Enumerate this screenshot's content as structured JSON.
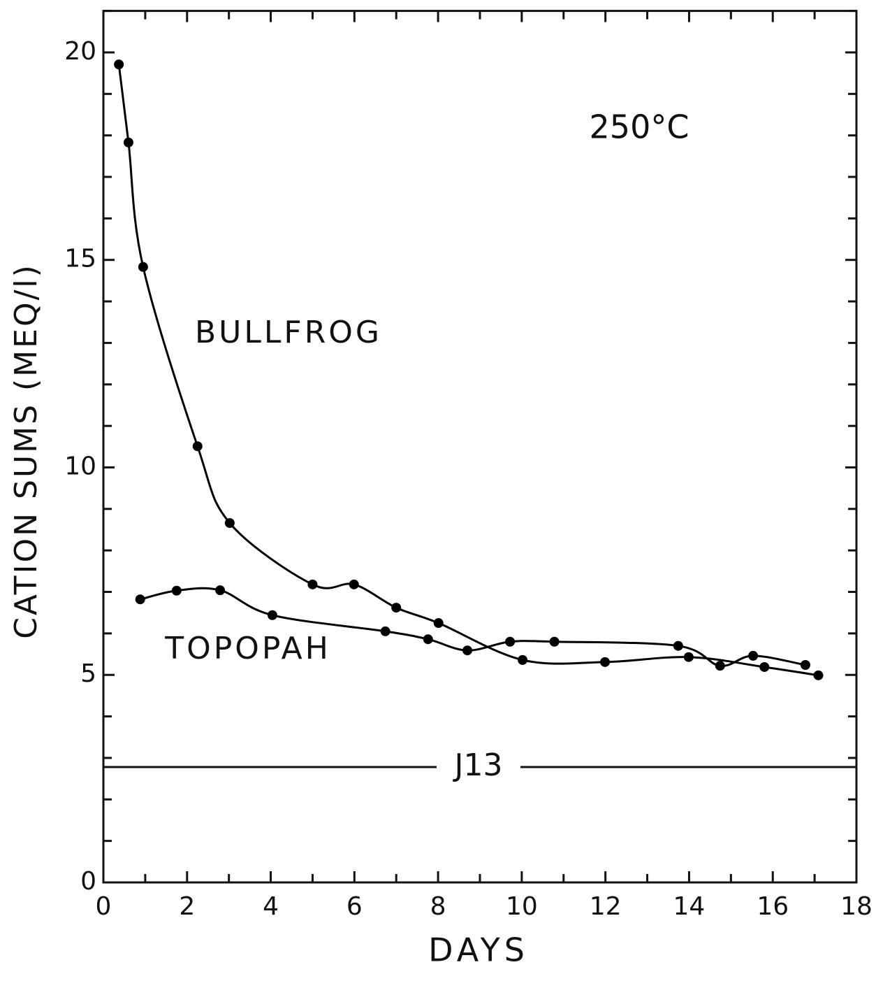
{
  "chart_data": {
    "type": "line",
    "xlabel": "DAYS",
    "ylabel": "CATION SUMS (MEQ/l)",
    "annotations": [
      "250°C",
      "BULLFROG",
      "TOPOPAH"
    ],
    "reference_lines": [
      {
        "label": "J13",
        "value": 2.78
      }
    ],
    "series": [
      {
        "name": "BULLFROG",
        "color": "#000000",
        "x": [
          0.37,
          0.6,
          0.95,
          2.25,
          3.02,
          5.0,
          5.99,
          7.0,
          8.01,
          10.02,
          11.99,
          13.99,
          15.8,
          17.09
        ],
        "values": [
          19.71,
          17.83,
          14.83,
          10.51,
          8.66,
          7.18,
          7.18,
          6.62,
          6.25,
          5.36,
          5.31,
          5.43,
          5.19,
          4.99
        ]
      },
      {
        "name": "TOPOPAH",
        "color": "#000000",
        "x": [
          0.88,
          1.75,
          2.79,
          4.04,
          6.74,
          7.76,
          8.7,
          9.72,
          10.78,
          13.74,
          14.74,
          15.53,
          16.78
        ],
        "values": [
          6.82,
          7.03,
          7.04,
          6.44,
          6.05,
          5.86,
          5.59,
          5.8,
          5.8,
          5.7,
          5.22,
          5.46,
          5.24
        ]
      }
    ],
    "xlim": [
      0,
      18
    ],
    "xticks": [
      0,
      2,
      4,
      6,
      8,
      10,
      12,
      14,
      16,
      18
    ],
    "xminorticks": [
      1,
      3,
      5,
      7,
      9,
      11,
      13,
      15,
      17
    ],
    "ylim": [
      0,
      21
    ],
    "yticks": [
      0,
      5,
      10,
      15,
      20
    ],
    "yminorticks": [
      1,
      2,
      3,
      4,
      6,
      7,
      8,
      9,
      11,
      12,
      13,
      14,
      16,
      17,
      18,
      19,
      21
    ],
    "grid": false
  }
}
